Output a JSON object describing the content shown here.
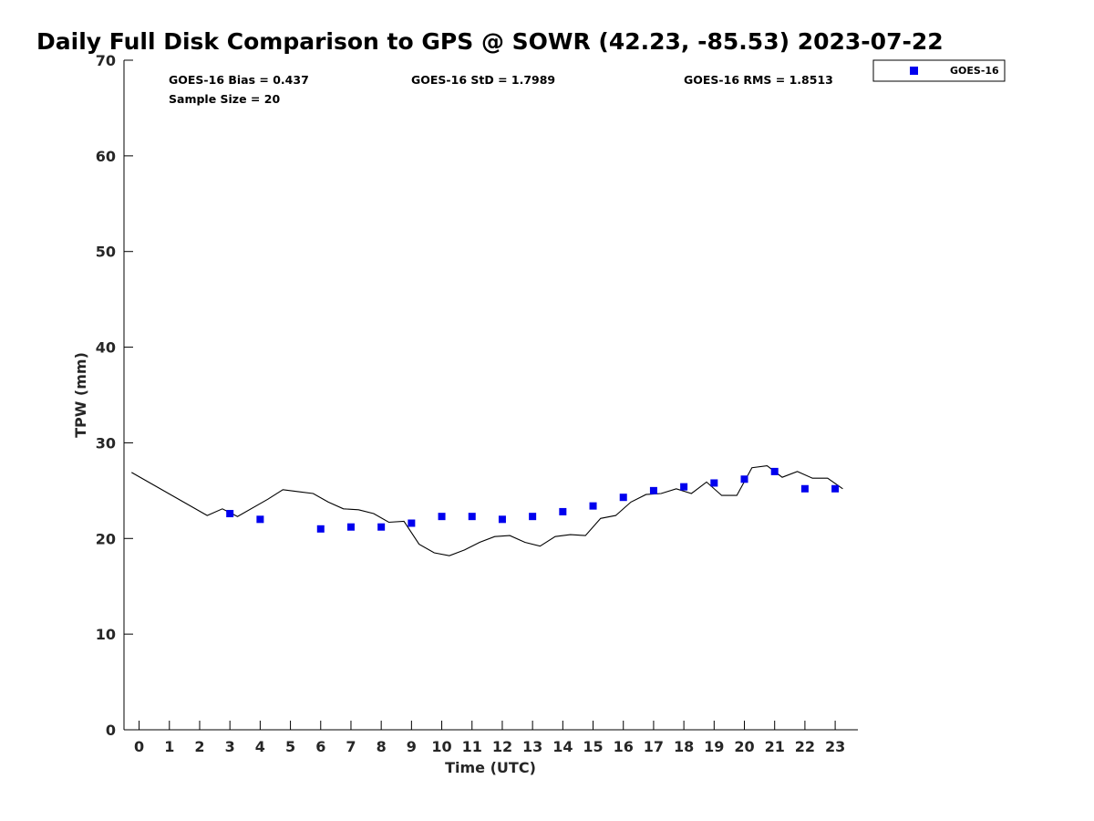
{
  "chart_data": {
    "type": "scatter",
    "title": "Daily Full Disk Comparison to GPS @ SOWR (42.23, -85.53) 2023-07-22",
    "xlabel": "Time (UTC)",
    "ylabel": "TPW (mm)",
    "xlim": [
      -0.5,
      23.75
    ],
    "ylim": [
      0,
      70
    ],
    "x_ticks": [
      "0",
      "1",
      "2",
      "3",
      "4",
      "5",
      "6",
      "7",
      "8",
      "9",
      "10",
      "11",
      "12",
      "13",
      "14",
      "15",
      "16",
      "17",
      "18",
      "19",
      "20",
      "21",
      "22",
      "23"
    ],
    "y_ticks": [
      "0",
      "10",
      "20",
      "30",
      "40",
      "50",
      "60",
      "70"
    ],
    "grid": false,
    "legend_position": "top-right, outside plot",
    "stats": {
      "bias": "GOES-16 Bias = 0.437",
      "std": "GOES-16 StD = 1.7989",
      "rms": "GOES-16 RMS = 1.8513",
      "sample": "Sample Size = 20"
    },
    "series": [
      {
        "name": "GOES-16",
        "kind": "scatter",
        "marker": "square",
        "color": "#0000ee",
        "x": [
          3,
          4,
          6,
          7,
          8,
          9,
          10,
          11,
          12,
          13,
          14,
          15,
          16,
          17,
          18,
          19,
          20,
          21,
          22,
          23
        ],
        "y": [
          22.6,
          22.0,
          21.0,
          21.2,
          21.2,
          21.6,
          22.3,
          22.3,
          22.0,
          22.3,
          22.8,
          23.4,
          24.3,
          25.0,
          25.4,
          25.8,
          26.2,
          27.0,
          25.2,
          25.2
        ]
      },
      {
        "kind": "line",
        "color": "#000000",
        "x": [
          -0.25,
          2.25,
          2.75,
          3.25,
          4.25,
          4.75,
          5.25,
          5.75,
          6.25,
          6.75,
          7.25,
          7.75,
          8.25,
          8.75,
          9.25,
          9.75,
          10.25,
          10.75,
          11.25,
          11.75,
          12.25,
          12.75,
          13.25,
          13.75,
          14.25,
          14.75,
          15.25,
          15.75,
          16.25,
          16.75,
          17.25,
          17.75,
          18.25,
          18.75,
          19.25,
          19.75,
          20.25,
          20.75,
          21.25,
          21.75,
          22.25,
          22.75,
          23.25
        ],
        "y": [
          26.9,
          22.4,
          23.1,
          22.3,
          24.1,
          25.1,
          24.9,
          24.7,
          23.8,
          23.1,
          23.0,
          22.6,
          21.7,
          21.8,
          19.4,
          18.5,
          18.2,
          18.8,
          19.6,
          20.2,
          20.3,
          19.6,
          19.2,
          20.2,
          20.4,
          20.3,
          22.1,
          22.4,
          23.8,
          24.6,
          24.7,
          25.2,
          24.7,
          25.9,
          24.5,
          24.5,
          27.4,
          27.6,
          26.4,
          27.0,
          26.3,
          26.3,
          25.2
        ]
      }
    ]
  }
}
